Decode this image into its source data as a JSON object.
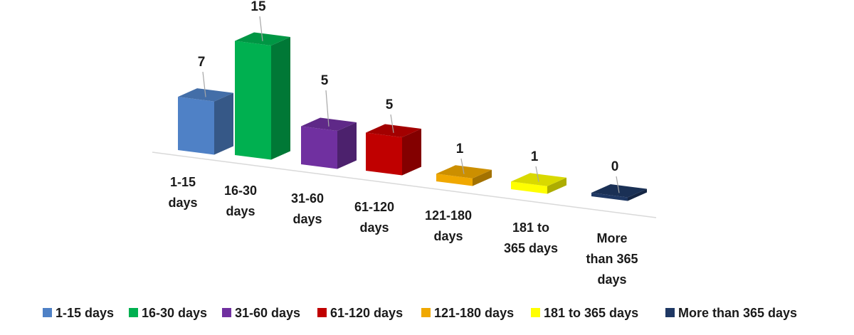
{
  "chart_data": {
    "type": "bar",
    "title": "",
    "xlabel": "",
    "ylabel": "",
    "categories": [
      "1-15 days",
      "16-30 days",
      "31-60 days",
      "61-120 days",
      "121-180 days",
      "181 to 365 days",
      "More than 365 days"
    ],
    "category_label_lines": [
      [
        "1-15",
        "days"
      ],
      [
        "16-30",
        "days"
      ],
      [
        "31-60",
        "days"
      ],
      [
        "61-120",
        "days"
      ],
      [
        "121-180",
        "days"
      ],
      [
        "181 to",
        "365 days"
      ],
      [
        "More",
        "than 365",
        "days"
      ]
    ],
    "values": [
      7,
      15,
      5,
      5,
      1,
      1,
      0
    ],
    "colors": [
      "#4F81C6",
      "#00B050",
      "#7030A0",
      "#C00000",
      "#F0A800",
      "#FFFF00",
      "#1F3864"
    ],
    "legend": {
      "position": "bottom",
      "entries": [
        "1-15 days",
        "16-30 days",
        "31-60 days",
        "61-120 days",
        "121-180 days",
        "181 to 365 days",
        "More than 365 days"
      ]
    },
    "grid": false,
    "ylim": [
      0,
      15
    ]
  }
}
